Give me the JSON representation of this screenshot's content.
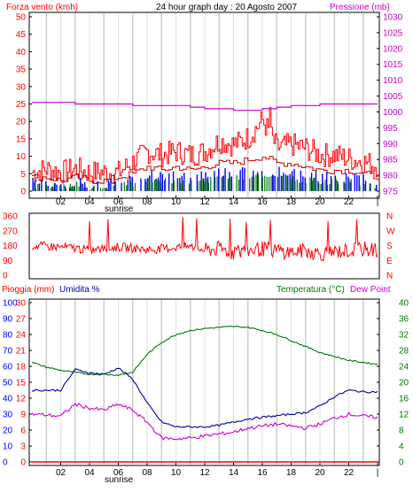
{
  "colors": {
    "red": "#ff0000",
    "darkred": "#cc0000",
    "magenta": "#cc00cc",
    "blue": "#0000ff",
    "darkblue": "#000099",
    "green": "#007700",
    "grid": "#cccccc",
    "frame": "#000000"
  },
  "chart_data": [
    {
      "type": "line",
      "title": "24 hour graph day : 20 Agosto 2007",
      "left_axis_label": "Forza vento (kmh)",
      "right_axis_label": "Pressione (mb)",
      "ylim_left": [
        0,
        50
      ],
      "ylim_right": [
        975,
        1030
      ],
      "left_ticks": [
        "50",
        "45",
        "40",
        "35",
        "30",
        "25",
        "20",
        "15",
        "10",
        "5",
        "0"
      ],
      "right_ticks": [
        "1030",
        "1025",
        "1020",
        "1015",
        "1010",
        "1005",
        "1000",
        "995",
        "990",
        "985",
        "980",
        "975"
      ],
      "x_ticks": [
        "02",
        "04",
        "06",
        "08",
        "10",
        "12",
        "14",
        "16",
        "18",
        "20",
        "22",
        "|"
      ],
      "sunrise_label": "sunrise",
      "sunrise_hour": 6.2,
      "pressure_hourly": [
        1003.0,
        1003.0,
        1003.0,
        1002.5,
        1002.5,
        1002.5,
        1002.5,
        1002.0,
        1002.0,
        1002.0,
        1002.0,
        1001.5,
        1001.0,
        1001.0,
        1000.5,
        1000.5,
        1001.0,
        1001.5,
        1002.0,
        1002.0,
        1002.5,
        1002.5,
        1002.5,
        1002.5,
        1002.5
      ],
      "wind_gust_hourly": [
        5,
        6,
        5,
        6,
        5,
        5,
        5,
        8,
        11,
        10,
        11,
        10,
        11,
        14,
        13,
        15,
        20,
        12,
        13,
        12,
        10,
        10,
        9,
        8,
        7
      ],
      "wind_avg_hourly": [
        4,
        4,
        3,
        4,
        3,
        3,
        4,
        5,
        7,
        6,
        7,
        6,
        7,
        8,
        8,
        9,
        10,
        8,
        8,
        7,
        6,
        6,
        6,
        5,
        4
      ],
      "wind_gust_peak": {
        "hour": 16.5,
        "value": 24
      }
    },
    {
      "type": "scatter",
      "left_ticks": [
        "360",
        "270",
        "180",
        "90",
        "0"
      ],
      "right_ticks": [
        "N",
        "W",
        "S",
        "E",
        "N"
      ],
      "ylim": [
        0,
        360
      ],
      "wind_dir_hourly": [
        180,
        175,
        170,
        165,
        150,
        160,
        170,
        165,
        155,
        160,
        170,
        175,
        150,
        160,
        140,
        150,
        160,
        150,
        140,
        150,
        130,
        140,
        150,
        160,
        150
      ]
    },
    {
      "type": "line",
      "rain_label": "Pioggia (mm)",
      "humidity_label": "Umidita %",
      "temperature_label": "Temperatura (°C)",
      "dew_label": "Dew Point",
      "humidity_ticks": [
        "100",
        "90",
        "80",
        "70",
        "60",
        "50",
        "40",
        "30",
        "20",
        "10",
        "0"
      ],
      "rain_ticks": [
        "30",
        "27",
        "24",
        "21",
        "18",
        "15",
        "12",
        "9",
        "6",
        "3",
        "0"
      ],
      "temp_ticks": [
        "40",
        "36",
        "32",
        "28",
        "24",
        "20",
        "16",
        "12",
        "8",
        "4",
        "0"
      ],
      "ylim_temp": [
        0,
        40
      ],
      "ylim_humidity": [
        0,
        100
      ],
      "x_ticks": [
        "02",
        "04",
        "06",
        "08",
        "10",
        "12",
        "14",
        "16",
        "18",
        "20",
        "22",
        "|"
      ],
      "sunrise_label": "sunrise",
      "temperature_hourly": [
        25.0,
        23.8,
        23.0,
        22.5,
        22.0,
        22.0,
        21.8,
        22.5,
        27.0,
        30.0,
        32.0,
        33.0,
        33.5,
        33.8,
        34.0,
        33.8,
        33.0,
        32.0,
        30.5,
        29.0,
        27.5,
        26.5,
        25.5,
        25.0,
        24.5
      ],
      "humidity_hourly": [
        45,
        45,
        45,
        58,
        56,
        55,
        59,
        52,
        37,
        25,
        22,
        22,
        22,
        23,
        25,
        27,
        28,
        29,
        30,
        31,
        35,
        41,
        45,
        44,
        44
      ],
      "dew_hourly": [
        12.0,
        11.8,
        11.5,
        14.5,
        13.5,
        13.0,
        14.5,
        13.0,
        10.0,
        6.0,
        5.8,
        6.0,
        6.5,
        7.0,
        7.5,
        8.5,
        9.0,
        9.5,
        9.0,
        8.5,
        9.5,
        11.0,
        12.0,
        11.5,
        11.2
      ],
      "rain_hourly": [
        0,
        0,
        0,
        0,
        0,
        0,
        0,
        0,
        0,
        0,
        0,
        0,
        0,
        0,
        0,
        0,
        0,
        0,
        0,
        0,
        0,
        0,
        0,
        0,
        0
      ]
    }
  ]
}
